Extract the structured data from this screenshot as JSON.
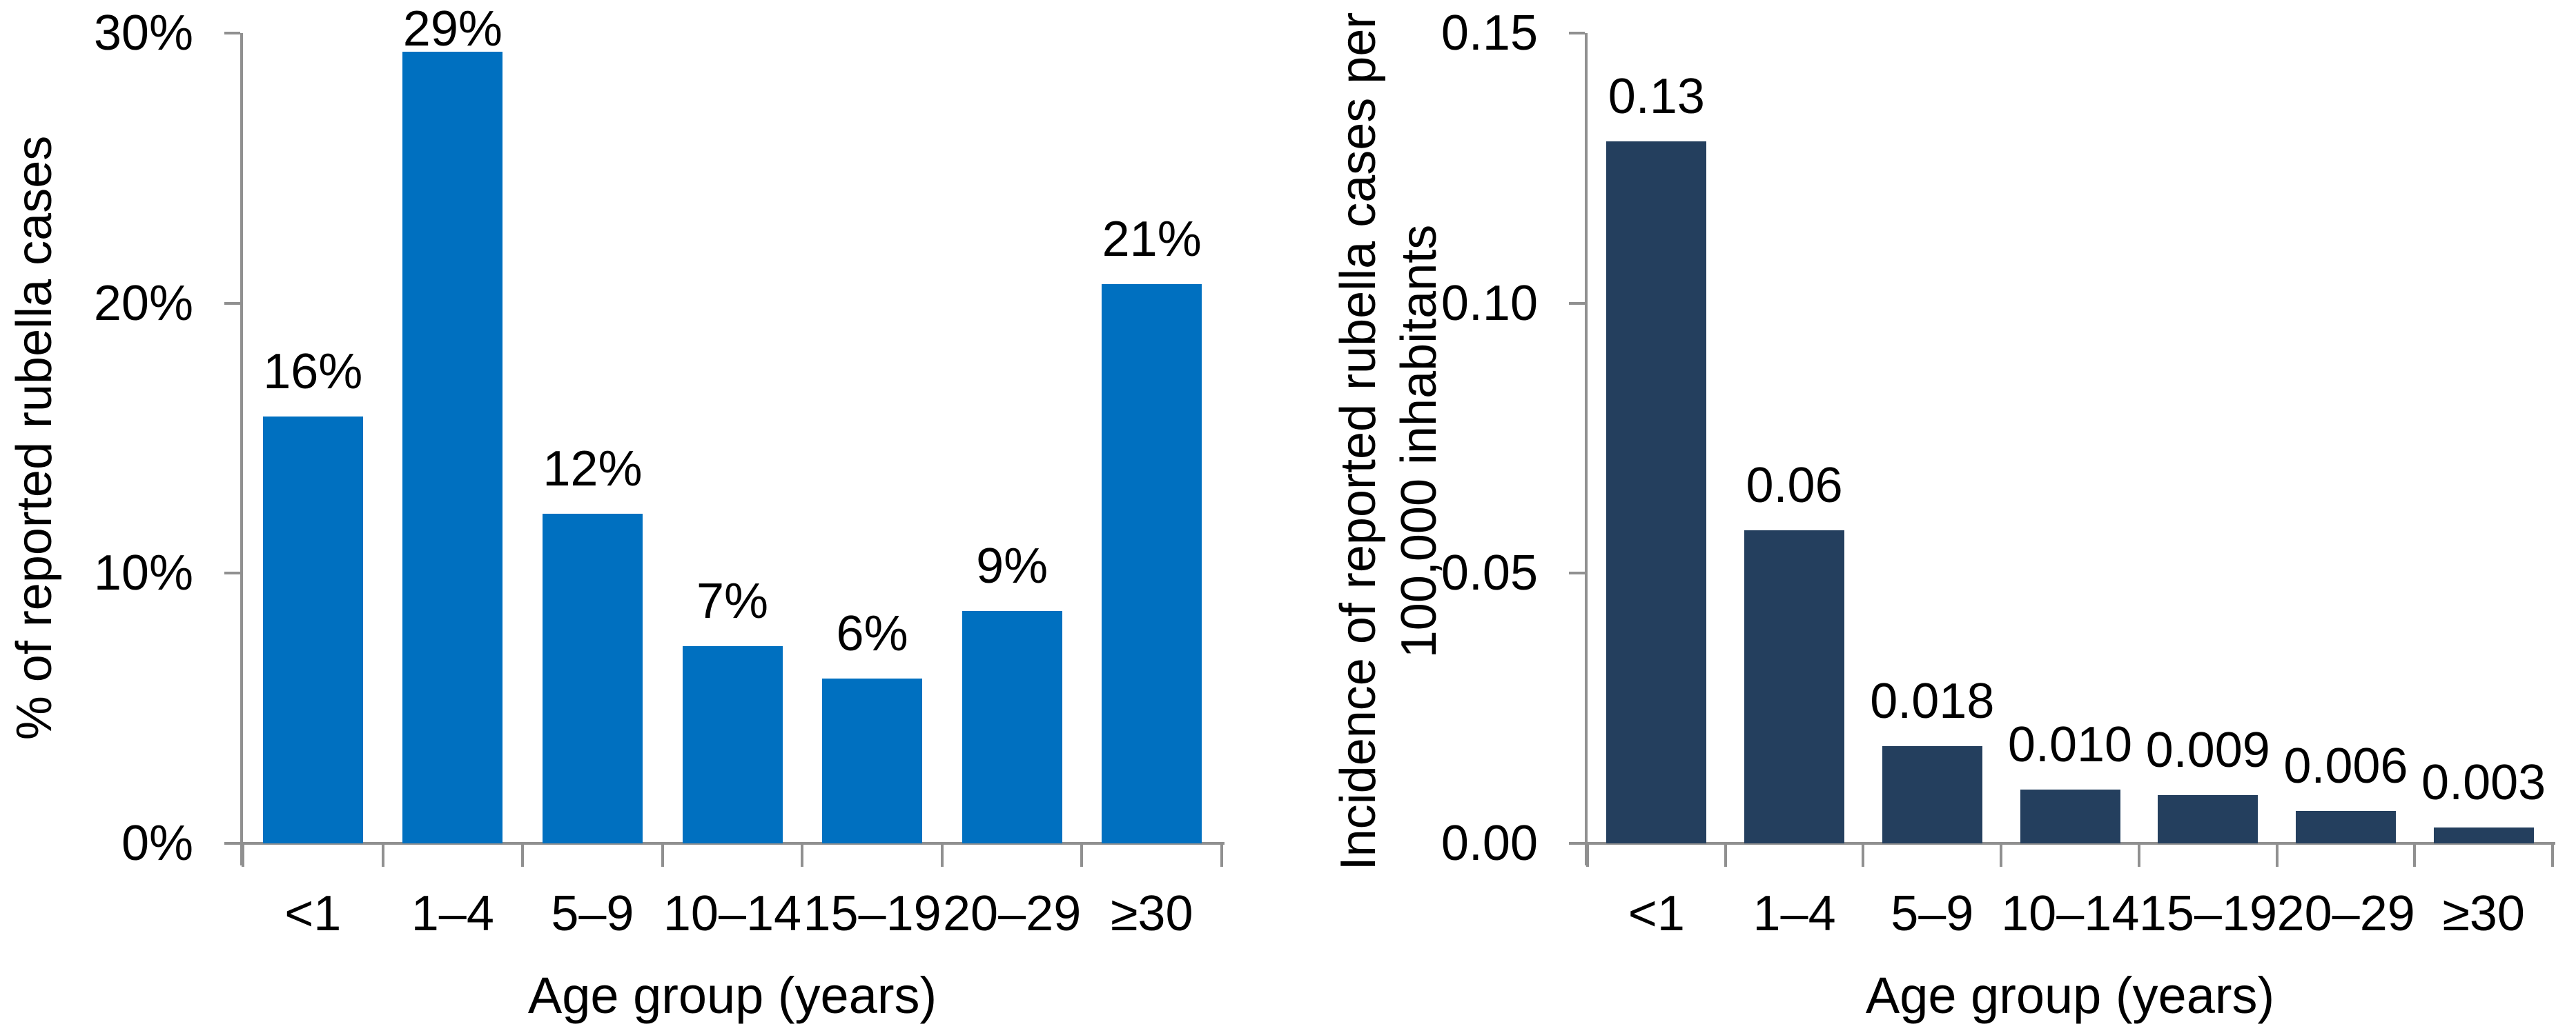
{
  "figure": {
    "background": "#ffffff",
    "text_color": "#000000",
    "axis_color": "#909090"
  },
  "chart_data": [
    {
      "type": "bar",
      "panel": "left",
      "title": "",
      "categories": [
        "<1",
        "1–4",
        "5–9",
        "10–14",
        "15–19",
        "20–29",
        "≥30"
      ],
      "values": [
        15.8,
        29.3,
        12.2,
        7.3,
        6.1,
        8.6,
        20.7
      ],
      "bar_labels": [
        "16%",
        "29%",
        "12%",
        "7%",
        "6%",
        "9%",
        "21%"
      ],
      "xlabel": "Age group (years)",
      "ylabel": "% of reported rubella cases",
      "ylabel_lines": [
        "% of reported rubella cases"
      ],
      "y_ticks": [
        {
          "value": 0,
          "label": "0%"
        },
        {
          "value": 10,
          "label": "10%"
        },
        {
          "value": 20,
          "label": "20%"
        },
        {
          "value": 30,
          "label": "30%"
        }
      ],
      "ylim": [
        0,
        30
      ],
      "bar_color": "#0070C0",
      "grid": false,
      "legend": null
    },
    {
      "type": "bar",
      "panel": "right",
      "title": "",
      "categories": [
        "<1",
        "1–4",
        "5–9",
        "10–14",
        "15–19",
        "20–29",
        "≥30"
      ],
      "values": [
        0.13,
        0.058,
        0.018,
        0.01,
        0.009,
        0.006,
        0.003
      ],
      "bar_labels": [
        "0.13",
        "0.06",
        "0.018",
        "0.010",
        "0.009",
        "0.006",
        "0.003"
      ],
      "xlabel": "Age group (years)",
      "ylabel": "Incidence of reported rubella cases per 100,000 inhabitants",
      "ylabel_lines": [
        "Incidence of reported rubella cases per",
        "100,000 inhabitants"
      ],
      "y_ticks": [
        {
          "value": 0.0,
          "label": "0.00"
        },
        {
          "value": 0.05,
          "label": "0.05"
        },
        {
          "value": 0.1,
          "label": "0.10"
        },
        {
          "value": 0.15,
          "label": "0.15"
        }
      ],
      "ylim": [
        0,
        0.15
      ],
      "bar_color": "#243F5E",
      "grid": false,
      "legend": null
    }
  ]
}
